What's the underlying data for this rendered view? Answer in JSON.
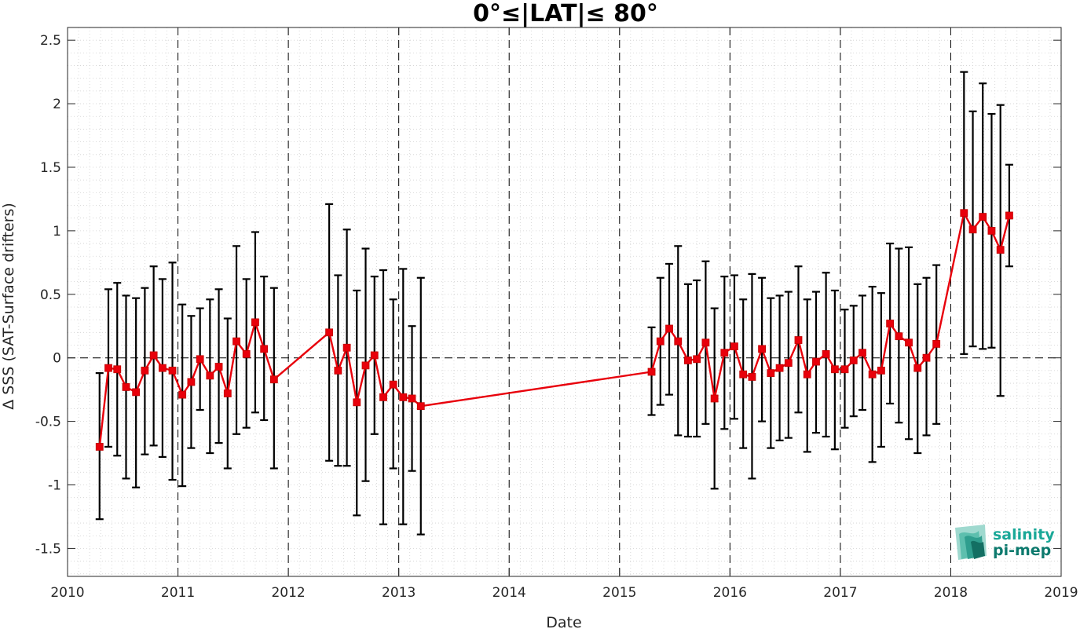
{
  "chart_data": {
    "type": "line",
    "title": "0°≤|LAT|≤ 80°",
    "xlabel": "Date",
    "ylabel": "Δ SSS (SAT-Surface drifters)",
    "xlim": [
      2010,
      2019
    ],
    "ylim": [
      -1.72,
      2.6
    ],
    "x_ticks": [
      2010,
      2011,
      2012,
      2013,
      2014,
      2015,
      2016,
      2017,
      2018,
      2019
    ],
    "x_tick_labels": [
      "2010",
      "2011",
      "2012",
      "2013",
      "2014",
      "2015",
      "2016",
      "2017",
      "2018",
      "2019"
    ],
    "y_ticks": [
      -1.5,
      -1,
      -0.5,
      0,
      0.5,
      1,
      1.5,
      2,
      2.5
    ],
    "y_tick_labels": [
      "-1.5",
      "-1",
      "-0.5",
      "0",
      "0.5",
      "1",
      "1.5",
      "2",
      "2.5"
    ],
    "vertical_dashed_lines_at": [
      2011,
      2012,
      2013,
      2014,
      2015,
      2016,
      2017,
      2018
    ],
    "horizontal_dashed_line_at": 0,
    "grid": "minor dotted",
    "colors": {
      "series": "#e8000b",
      "error_bars": "#000000",
      "axes": "#262626",
      "grid": "#d0d0d0",
      "logo_top": "#1aa898",
      "logo_bottom": "#0d7a6e"
    },
    "series": [
      {
        "x": [
          2010.29,
          2010.37,
          2010.45,
          2010.53,
          2010.62,
          2010.7,
          2010.78,
          2010.86,
          2010.95,
          2011.04,
          2011.12,
          2011.2,
          2011.29,
          2011.37,
          2011.45,
          2011.53,
          2011.62,
          2011.7,
          2011.78,
          2011.87,
          2012.37,
          2012.45,
          2012.53,
          2012.62,
          2012.7,
          2012.78,
          2012.86,
          2012.95,
          2013.04,
          2013.12,
          2013.2,
          2015.29,
          2015.37,
          2015.45,
          2015.53,
          2015.62,
          2015.7,
          2015.78,
          2015.86,
          2015.95,
          2016.04,
          2016.12,
          2016.2,
          2016.29,
          2016.37,
          2016.45,
          2016.53,
          2016.62,
          2016.7,
          2016.78,
          2016.87,
          2016.95,
          2017.04,
          2017.12,
          2017.2,
          2017.29,
          2017.37,
          2017.45,
          2017.53,
          2017.62,
          2017.7,
          2017.78,
          2017.87,
          2018.12,
          2018.2,
          2018.29,
          2018.37,
          2018.45,
          2018.53
        ],
        "values": [
          -0.7,
          -0.08,
          -0.09,
          -0.23,
          -0.27,
          -0.1,
          0.02,
          -0.08,
          -0.1,
          -0.29,
          -0.19,
          -0.01,
          -0.14,
          -0.07,
          -0.28,
          0.13,
          0.03,
          0.28,
          0.07,
          -0.17,
          0.2,
          -0.1,
          0.08,
          -0.35,
          -0.06,
          0.02,
          -0.31,
          -0.21,
          -0.31,
          -0.32,
          -0.38,
          -0.11,
          0.13,
          0.23,
          0.13,
          -0.02,
          -0.01,
          0.12,
          -0.32,
          0.04,
          0.09,
          -0.13,
          -0.15,
          0.07,
          -0.12,
          -0.08,
          -0.04,
          0.14,
          -0.13,
          -0.03,
          0.03,
          -0.09,
          -0.09,
          -0.02,
          0.04,
          -0.13,
          -0.1,
          0.27,
          0.17,
          0.12,
          -0.08,
          0.0,
          0.11,
          1.14,
          1.01,
          1.11,
          1.0,
          0.85,
          1.12
        ],
        "err_low": [
          -1.27,
          -0.7,
          -0.77,
          -0.95,
          -1.02,
          -0.76,
          -0.69,
          -0.78,
          -0.96,
          -1.01,
          -0.71,
          -0.41,
          -0.75,
          -0.67,
          -0.87,
          -0.6,
          -0.55,
          -0.43,
          -0.49,
          -0.87,
          -0.81,
          -0.85,
          -0.85,
          -1.24,
          -0.97,
          -0.6,
          -1.31,
          -0.87,
          -1.31,
          -0.89,
          -1.39,
          -0.45,
          -0.37,
          -0.29,
          -0.61,
          -0.62,
          -0.62,
          -0.52,
          -1.03,
          -0.56,
          -0.48,
          -0.71,
          -0.95,
          -0.5,
          -0.71,
          -0.65,
          -0.63,
          -0.43,
          -0.74,
          -0.59,
          -0.62,
          -0.72,
          -0.55,
          -0.46,
          -0.41,
          -0.82,
          -0.7,
          -0.36,
          -0.51,
          -0.64,
          -0.75,
          -0.61,
          -0.52,
          0.03,
          0.09,
          0.07,
          0.08,
          -0.3,
          0.72
        ],
        "err_high": [
          -0.12,
          0.54,
          0.59,
          0.49,
          0.47,
          0.55,
          0.72,
          0.62,
          0.75,
          0.42,
          0.33,
          0.39,
          0.46,
          0.54,
          0.31,
          0.88,
          0.62,
          0.99,
          0.64,
          0.55,
          1.21,
          0.65,
          1.01,
          0.53,
          0.86,
          0.64,
          0.69,
          0.46,
          0.7,
          0.25,
          0.63,
          0.24,
          0.63,
          0.74,
          0.88,
          0.58,
          0.61,
          0.76,
          0.39,
          0.64,
          0.65,
          0.46,
          0.66,
          0.63,
          0.47,
          0.49,
          0.52,
          0.72,
          0.46,
          0.52,
          0.67,
          0.53,
          0.38,
          0.41,
          0.49,
          0.56,
          0.51,
          0.9,
          0.86,
          0.87,
          0.58,
          0.63,
          0.73,
          2.25,
          1.94,
          2.16,
          1.92,
          1.99,
          1.52
        ],
        "gaps_after_index": [],
        "markers": "square"
      }
    ]
  },
  "logo": {
    "line1": "salinity",
    "line2": "pi-mep"
  }
}
